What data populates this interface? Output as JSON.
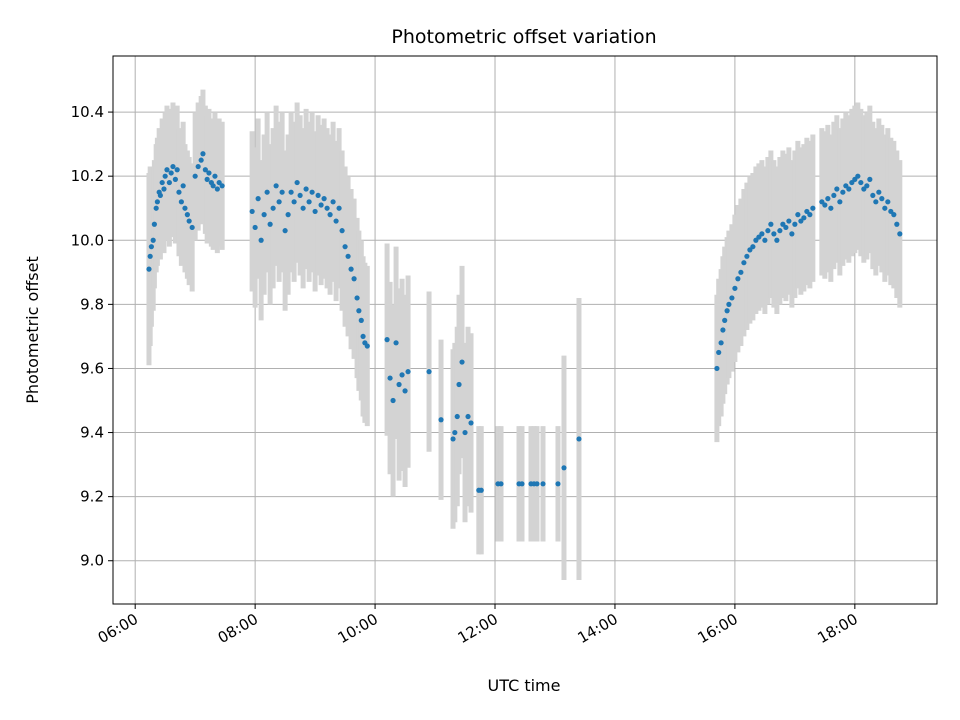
{
  "chart_data": {
    "type": "scatter",
    "title": "Photometric offset variation",
    "xlabel": "UTC time",
    "ylabel": "Photometric offset",
    "x_unit": "hours UTC",
    "xlim": [
      5.63,
      19.37
    ],
    "ylim": [
      8.865,
      10.575
    ],
    "x_ticks": [
      6,
      8,
      10,
      12,
      14,
      16,
      18
    ],
    "x_tick_labels": [
      "06:00",
      "08:00",
      "10:00",
      "12:00",
      "14:00",
      "16:00",
      "18:00"
    ],
    "y_ticks": [
      9.0,
      9.2,
      9.4,
      9.6,
      9.8,
      10.0,
      10.2,
      10.4
    ],
    "y_tick_labels": [
      "9.0",
      "9.2",
      "9.4",
      "9.6",
      "9.8",
      "10.0",
      "10.2",
      "10.4"
    ],
    "grid": true,
    "colors": {
      "points": "#1f77b4",
      "errorbars": "#d3d3d3",
      "grid": "#b0b0b0"
    },
    "series": [
      {
        "x": [
          6.23,
          6.25,
          6.27,
          6.3,
          6.32,
          6.35,
          6.37,
          6.4,
          6.42,
          6.45,
          6.48,
          6.5,
          6.53,
          6.57,
          6.6,
          6.63,
          6.67,
          6.7,
          6.73,
          6.77,
          6.8,
          6.83,
          6.87,
          6.9,
          6.95,
          7.0,
          7.05,
          7.1,
          7.13,
          7.17,
          7.2,
          7.23,
          7.27,
          7.3,
          7.33,
          7.37,
          7.4,
          7.45,
          7.95,
          8.0,
          8.05,
          8.1,
          8.15,
          8.2,
          8.25,
          8.3,
          8.35,
          8.4,
          8.45,
          8.5,
          8.55,
          8.6,
          8.65,
          8.7,
          8.75,
          8.8,
          8.85,
          8.9,
          8.95,
          9.0,
          9.05,
          9.1,
          9.15,
          9.2,
          9.25,
          9.3,
          9.35,
          9.4,
          9.45,
          9.5,
          9.55,
          9.6,
          9.65,
          9.7,
          9.73,
          9.77,
          9.8,
          9.83,
          9.87,
          10.2,
          10.25,
          10.3,
          10.35,
          10.4,
          10.45,
          10.5,
          10.55,
          10.9,
          11.1,
          11.3,
          11.33,
          11.37,
          11.4,
          11.45,
          11.5,
          11.55,
          11.6,
          11.73,
          11.77,
          12.05,
          12.1,
          12.4,
          12.45,
          12.6,
          12.65,
          12.7,
          12.8,
          13.05,
          13.15,
          13.4,
          15.7,
          15.73,
          15.77,
          15.8,
          15.83,
          15.87,
          15.9,
          15.95,
          16.0,
          16.05,
          16.1,
          16.15,
          16.2,
          16.25,
          16.3,
          16.35,
          16.4,
          16.45,
          16.5,
          16.55,
          16.6,
          16.65,
          16.7,
          16.75,
          16.8,
          16.85,
          16.9,
          16.95,
          17.0,
          17.05,
          17.1,
          17.15,
          17.2,
          17.25,
          17.3,
          17.45,
          17.5,
          17.55,
          17.6,
          17.65,
          17.7,
          17.75,
          17.8,
          17.85,
          17.9,
          17.95,
          18.0,
          18.05,
          18.1,
          18.15,
          18.2,
          18.25,
          18.3,
          18.35,
          18.4,
          18.45,
          18.5,
          18.55,
          18.6,
          18.65,
          18.7,
          18.75
        ],
        "y": [
          9.91,
          9.95,
          9.98,
          10.0,
          10.05,
          10.1,
          10.12,
          10.15,
          10.14,
          10.18,
          10.16,
          10.2,
          10.22,
          10.18,
          10.21,
          10.23,
          10.19,
          10.22,
          10.15,
          10.12,
          10.17,
          10.1,
          10.08,
          10.06,
          10.04,
          10.2,
          10.23,
          10.25,
          10.27,
          10.22,
          10.19,
          10.21,
          10.18,
          10.17,
          10.2,
          10.16,
          10.18,
          10.17,
          10.09,
          10.04,
          10.13,
          10.0,
          10.08,
          10.15,
          10.05,
          10.1,
          10.17,
          10.12,
          10.15,
          10.03,
          10.08,
          10.15,
          10.12,
          10.18,
          10.14,
          10.1,
          10.16,
          10.12,
          10.15,
          10.09,
          10.14,
          10.11,
          10.13,
          10.1,
          10.08,
          10.12,
          10.06,
          10.1,
          10.03,
          9.98,
          9.95,
          9.91,
          9.88,
          9.82,
          9.78,
          9.75,
          9.7,
          9.68,
          9.67,
          9.69,
          9.57,
          9.5,
          9.68,
          9.55,
          9.58,
          9.53,
          9.59,
          9.59,
          9.44,
          9.38,
          9.4,
          9.45,
          9.55,
          9.62,
          9.4,
          9.45,
          9.43,
          9.22,
          9.22,
          9.24,
          9.24,
          9.24,
          9.24,
          9.24,
          9.24,
          9.24,
          9.24,
          9.24,
          9.29,
          9.38,
          9.6,
          9.65,
          9.68,
          9.72,
          9.75,
          9.78,
          9.8,
          9.82,
          9.85,
          9.88,
          9.9,
          9.93,
          9.95,
          9.97,
          9.98,
          10.0,
          10.01,
          10.02,
          10.0,
          10.03,
          10.05,
          10.02,
          10.0,
          10.03,
          10.05,
          10.04,
          10.06,
          10.02,
          10.05,
          10.08,
          10.06,
          10.07,
          10.09,
          10.08,
          10.1,
          10.12,
          10.11,
          10.13,
          10.1,
          10.14,
          10.16,
          10.12,
          10.15,
          10.17,
          10.16,
          10.18,
          10.19,
          10.2,
          10.18,
          10.16,
          10.17,
          10.19,
          10.14,
          10.12,
          10.15,
          10.13,
          10.1,
          10.12,
          10.09,
          10.08,
          10.05,
          10.02
        ],
        "yerr": [
          0.3,
          0.28,
          0.25,
          0.22,
          0.2,
          0.2,
          0.2,
          0.2,
          0.2,
          0.2,
          0.2,
          0.2,
          0.2,
          0.2,
          0.2,
          0.2,
          0.2,
          0.2,
          0.2,
          0.2,
          0.2,
          0.2,
          0.2,
          0.2,
          0.2,
          0.2,
          0.2,
          0.2,
          0.2,
          0.2,
          0.2,
          0.2,
          0.2,
          0.2,
          0.2,
          0.2,
          0.2,
          0.2,
          0.25,
          0.25,
          0.25,
          0.25,
          0.25,
          0.25,
          0.25,
          0.25,
          0.25,
          0.25,
          0.25,
          0.25,
          0.25,
          0.25,
          0.25,
          0.25,
          0.25,
          0.25,
          0.25,
          0.25,
          0.25,
          0.25,
          0.25,
          0.25,
          0.25,
          0.25,
          0.25,
          0.25,
          0.25,
          0.25,
          0.25,
          0.25,
          0.25,
          0.25,
          0.25,
          0.25,
          0.25,
          0.25,
          0.25,
          0.25,
          0.25,
          0.3,
          0.3,
          0.3,
          0.3,
          0.3,
          0.3,
          0.3,
          0.3,
          0.25,
          0.25,
          0.28,
          0.28,
          0.28,
          0.28,
          0.3,
          0.28,
          0.28,
          0.28,
          0.2,
          0.2,
          0.18,
          0.18,
          0.18,
          0.18,
          0.18,
          0.18,
          0.18,
          0.18,
          0.18,
          0.35,
          0.44,
          0.23,
          0.23,
          0.23,
          0.23,
          0.23,
          0.23,
          0.23,
          0.23,
          0.23,
          0.23,
          0.23,
          0.23,
          0.23,
          0.23,
          0.23,
          0.23,
          0.23,
          0.23,
          0.23,
          0.23,
          0.23,
          0.23,
          0.23,
          0.23,
          0.23,
          0.23,
          0.23,
          0.23,
          0.23,
          0.23,
          0.23,
          0.23,
          0.23,
          0.23,
          0.23,
          0.23,
          0.23,
          0.23,
          0.23,
          0.23,
          0.23,
          0.23,
          0.23,
          0.23,
          0.23,
          0.23,
          0.23,
          0.23,
          0.23,
          0.23,
          0.23,
          0.23,
          0.23,
          0.23,
          0.23,
          0.23,
          0.23,
          0.23,
          0.23,
          0.23,
          0.23,
          0.23
        ]
      }
    ]
  }
}
